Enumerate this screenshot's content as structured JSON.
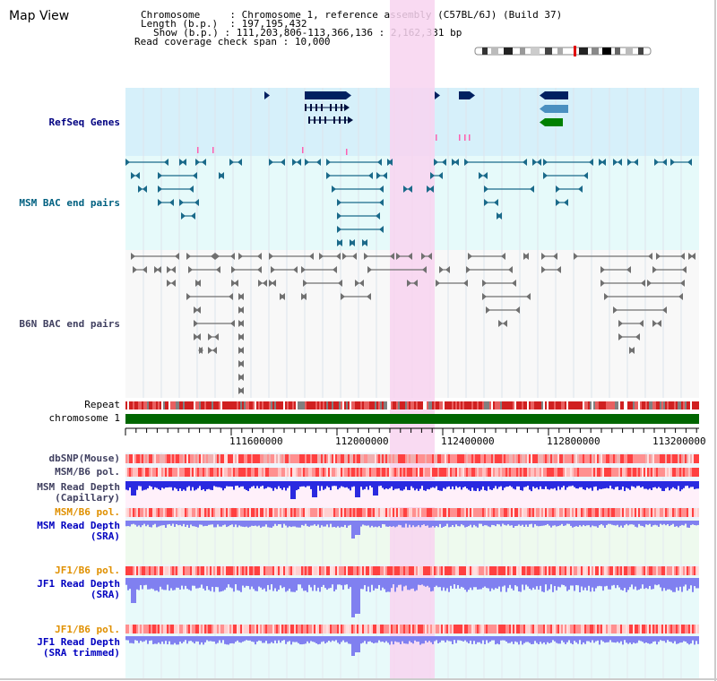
{
  "title": "Map View",
  "info": {
    "chromosome_key": "Chromosome",
    "chromosome_val": ": Chromosome 1, reference assembly (C57BL/6J) (Build 37)",
    "length_key": "Length (b.p.)",
    "length_val": ": 197,195,432",
    "show_key": "Show (b.p.)",
    "show_val": ": 111,203,806-113,366,136 : 2,162,331 bp",
    "coverage_key": "Read coverage check span",
    "coverage_val": ": 10,000"
  },
  "tracks": {
    "refseq": "RefSeq Genes",
    "msm_bac": "MSM BAC end pairs",
    "b6n_bac": "B6N BAC end pairs",
    "repeat": "Repeat",
    "chromosome": "chromosome 1",
    "dbsnp": "dbSNP(Mouse)",
    "msm_b6_pol_1": "MSM/B6 pol.",
    "msm_read_depth_cap_1": "MSM Read Depth",
    "msm_read_depth_cap_2": "(Capillary)",
    "msm_b6_pol_2": "MSM/B6 pol.",
    "msm_read_depth_sra_1": "MSM Read Depth",
    "msm_read_depth_sra_2": "(SRA)",
    "jf1_b6_pol_1": "JF1/B6 pol.",
    "jf1_read_depth_sra_1": "JF1 Read Depth",
    "jf1_read_depth_sra_2": "(SRA)",
    "jf1_b6_pol_2": "JF1/B6 pol.",
    "jf1_read_depth_trim_1": "JF1 Read Depth",
    "jf1_read_depth_trim_2": "(SRA trimmed)"
  },
  "axis_ticks": [
    "111600000",
    "112000000",
    "112400000",
    "112800000",
    "113200000"
  ],
  "colors": {
    "refseq_bg": "#d6f0fa",
    "msm_bg": "#e6fafa",
    "b6n_bg": "#f8f8f8",
    "highlight": "#f8d4f0",
    "navy_label": "#000080",
    "teal_label": "#006080",
    "dark_label": "#404060",
    "orange_label": "#e09000",
    "blue_label": "#0000c0",
    "chromosome_green": "#006600",
    "depth_blue": "#2a2ae0",
    "depth_light": "#8080f0"
  }
}
